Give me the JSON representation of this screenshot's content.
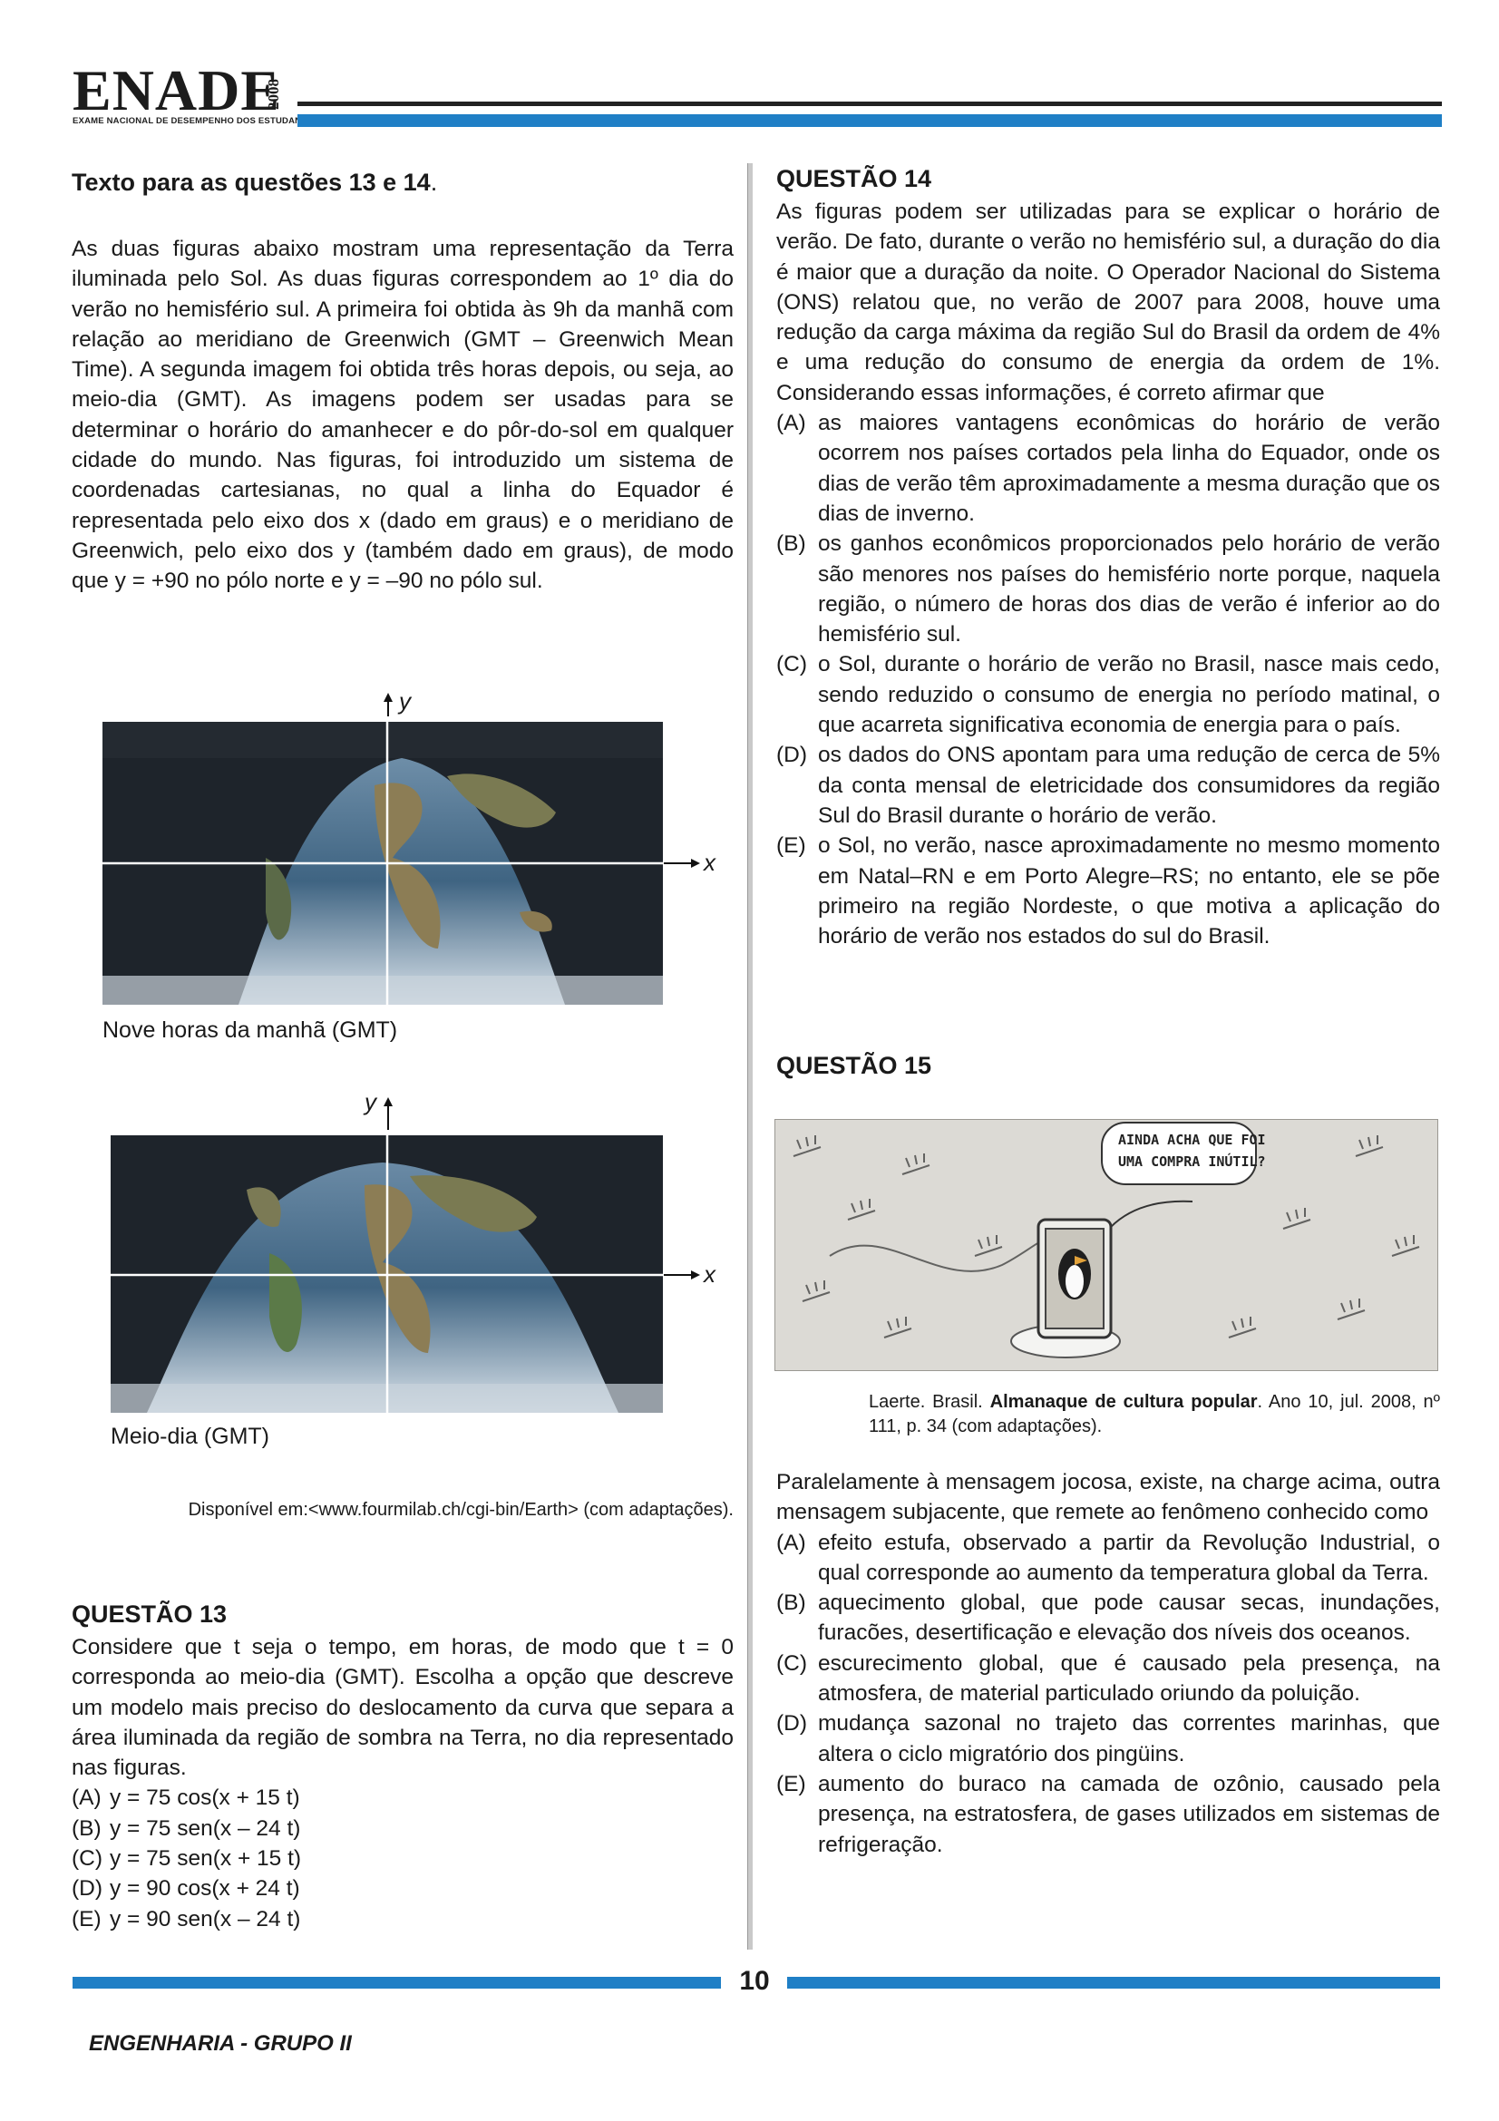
{
  "header": {
    "logo": "ENADE",
    "year": "2008",
    "subtitle": "EXAME NACIONAL DE DESEMPENHO DOS ESTUDANTES"
  },
  "left": {
    "intro_title": "Texto para as questões 13 e 14",
    "intro_paragraph": "As duas figuras abaixo mostram uma representação da Terra iluminada pelo Sol. As duas figuras correspondem ao 1º dia do verão no hemisfério sul. A primeira foi obtida às 9h da manhã com relação ao meridiano de Greenwich (GMT – Greenwich Mean Time). A segunda imagem foi obtida três horas depois, ou seja, ao meio-dia (GMT). As imagens podem ser usadas para se determinar o horário do amanhecer e do pôr-do-sol em qualquer cidade do mundo. Nas figuras, foi introduzido um sistema de coordenadas cartesianas, no qual a linha do Equador é representada pelo eixo dos x (dado em graus) e o meridiano de Greenwich, pelo eixo dos y (também dado em graus), de modo que y = +90 no pólo norte e y = –90 no pólo sul.",
    "figure1": {
      "caption": "Nove horas da manhã (GMT)",
      "x_label": "x",
      "y_label": "y"
    },
    "figure2": {
      "caption": "Meio-dia (GMT)",
      "x_label": "x",
      "y_label": "y"
    },
    "source": "Disponível em:<www.fourmilab.ch/cgi-bin/Earth> (com adaptações).",
    "q13": {
      "title": "QUESTÃO 13",
      "stem": "Considere que t seja o tempo, em horas, de modo que t = 0 corresponda ao meio-dia (GMT). Escolha a opção que descreve um modelo mais preciso do deslocamento da curva que separa a área iluminada da região de sombra na Terra, no dia representado nas figuras.",
      "options": [
        {
          "label": "(A)",
          "text": "y = 75 cos(x + 15 t)"
        },
        {
          "label": "(B)",
          "text": "y = 75 sen(x – 24 t)"
        },
        {
          "label": "(C)",
          "text": "y = 75 sen(x + 15 t)"
        },
        {
          "label": "(D)",
          "text": "y = 90 cos(x + 24 t)"
        },
        {
          "label": "(E)",
          "text": "y = 90 sen(x – 24 t)"
        }
      ]
    }
  },
  "right": {
    "q14": {
      "title": "QUESTÃO 14",
      "stem": "As figuras podem ser utilizadas para se explicar o horário de verão. De fato, durante o verão no hemisfério sul, a duração do dia é maior que a duração da noite. O Operador Nacional do Sistema (ONS) relatou que, no verão de 2007 para 2008, houve uma redução da carga máxima da região Sul do Brasil da ordem de 4% e uma redução do consumo de energia da ordem de 1%. Considerando essas informações, é correto afirmar que",
      "options": [
        {
          "label": "(A)",
          "text": "as maiores vantagens econômicas do horário de verão ocorrem nos países cortados pela linha do Equador, onde os dias de verão têm aproximadamente a mesma duração que os dias de inverno."
        },
        {
          "label": "(B)",
          "text": "os ganhos econômicos proporcionados pelo horário de verão são menores nos países do hemisfério norte porque, naquela região, o número de horas dos dias de verão é inferior ao do hemisfério sul."
        },
        {
          "label": "(C)",
          "text": "o Sol, durante o horário de verão no Brasil, nasce mais cedo, sendo reduzido o consumo de energia no período matinal, o que acarreta significativa economia de energia para o país."
        },
        {
          "label": "(D)",
          "text": "os dados do ONS apontam para uma redução de cerca de 5% da conta mensal de eletricidade dos consumidores da região Sul do Brasil durante o horário de verão."
        },
        {
          "label": "(E)",
          "text": "o Sol, no verão, nasce aproximadamente no mesmo momento em Natal–RN e em Porto Alegre–RS; no entanto, ele se põe primeiro na região Nordeste, o que motiva a aplicação do horário de verão nos estados do sul do Brasil."
        }
      ]
    },
    "q15": {
      "title": "QUESTÃO 15",
      "cartoon_speech_line1": "AINDA ACHA QUE FOI",
      "cartoon_speech_line2": "UMA COMPRA INÚTIL?",
      "credit_author": "Laerte. Brasil. ",
      "credit_title": "Almanaque de cultura popular",
      "credit_rest": ". Ano 10, jul. 2008, nº 111, p. 34 (com adaptações).",
      "stem": "Paralelamente à mensagem jocosa, existe, na charge acima, outra mensagem subjacente, que remete ao fenômeno conhecido como",
      "options": [
        {
          "label": "(A)",
          "text": "efeito estufa, observado a partir da Revolução Industrial, o qual corresponde ao aumento da temperatura global da Terra."
        },
        {
          "label": "(B)",
          "text": "aquecimento global, que pode causar secas, inundações, furacões, desertificação e elevação dos níveis dos oceanos."
        },
        {
          "label": "(C)",
          "text": "escurecimento global, que é causado pela presença, na atmosfera, de material particulado oriundo da poluição."
        },
        {
          "label": "(D)",
          "text": "mudança sazonal no trajeto das correntes marinhas, que altera o ciclo migratório dos pingüins."
        },
        {
          "label": "(E)",
          "text": "aumento do buraco na camada de ozônio, causado pela presença, na estratosfera, de gases utilizados em sistemas de refrigeração."
        }
      ]
    }
  },
  "footer": {
    "page_number": "10",
    "course": "ENGENHARIA - GRUPO II"
  }
}
